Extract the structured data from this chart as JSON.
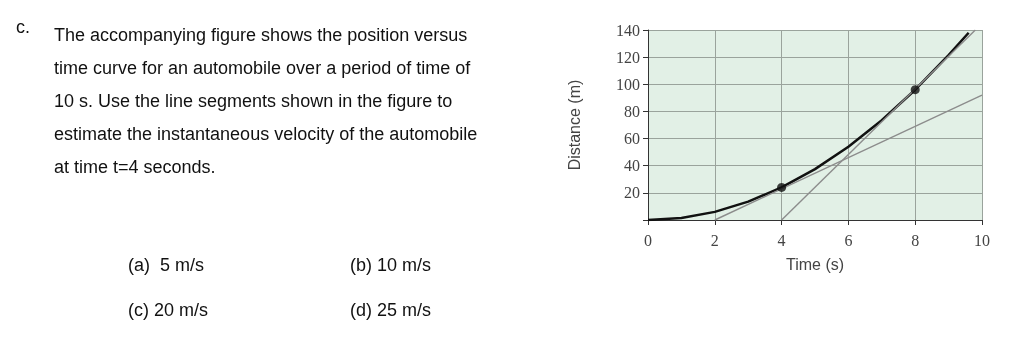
{
  "chart_data": {
    "type": "line",
    "xlabel": "Time (s)",
    "ylabel": "Distance (m)",
    "xlim": [
      0,
      10
    ],
    "xticks": [
      0,
      2,
      4,
      6,
      8,
      10
    ],
    "ylim": [
      0,
      140
    ],
    "yticks": [
      {
        "value": 0,
        "label": null
      },
      20,
      40,
      60,
      80,
      100,
      120,
      140
    ],
    "grid": true,
    "series": [
      {
        "color": "#111111",
        "x": [
          0,
          1,
          2,
          3,
          4,
          5,
          6,
          7,
          8,
          9,
          9.6
        ],
        "values": [
          0,
          1.5,
          6,
          13.5,
          24,
          37.5,
          54,
          73.5,
          96,
          121.5,
          138
        ],
        "marker": "none"
      },
      {
        "color": "#8c8c8c",
        "x": [
          2,
          10
        ],
        "values": [
          0,
          92
        ],
        "marker": "none"
      },
      {
        "color": "#8c8c8c",
        "x": [
          4,
          9.8
        ],
        "values": [
          0,
          140
        ],
        "marker": "none"
      },
      {
        "type": "scatter",
        "color": "#111111",
        "x": [
          4,
          8
        ],
        "values": [
          24,
          96
        ],
        "marker": "circle"
      }
    ],
    "annotations": [
      "c.",
      "The accompanying figure shows the position versus time curve for an automobile over a period of time of 10 s. Use the line segments shown in the figure to estimate the instantaneous velocity of the automobile at time t=4 seconds.",
      "(a)  5 m/s",
      "(b) 10 m/s",
      "(c) 20 m/s",
      "(d) 25 m/s"
    ]
  }
}
